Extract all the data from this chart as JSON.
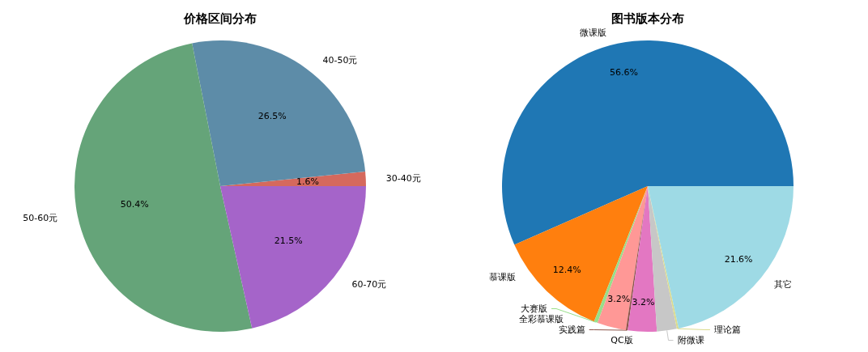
{
  "chart_data": [
    {
      "type": "pie",
      "title": "价格区间分布",
      "categories": [
        "30-40元",
        "40-50元",
        "50-60元",
        "60-70元"
      ],
      "values": [
        1.6,
        26.5,
        50.4,
        21.5
      ],
      "colors": [
        "#d5695d",
        "#5d8ca8",
        "#65a479",
        "#a564c9"
      ],
      "value_labels": [
        "1.6%",
        "26.5%",
        "50.4%",
        "21.5%"
      ]
    },
    {
      "type": "pie",
      "title": "图书版本分布",
      "categories": [
        "微课版",
        "慕课版",
        "大赛版",
        "全彩慕课版",
        "实践篇",
        "QC版",
        "附微课",
        "理论篇",
        "其它"
      ],
      "values": [
        56.6,
        12.4,
        0.4,
        3.2,
        0.2,
        3.2,
        2.2,
        0.2,
        21.6
      ],
      "colors": [
        "#1f77b4",
        "#ff7f0e",
        "#98df8a",
        "#ff9896",
        "#8c564b",
        "#e377c2",
        "#c7c7c7",
        "#dbdb8d",
        "#9edae5"
      ],
      "value_labels": [
        "56.6%",
        "12.4%",
        null,
        "3.2%",
        null,
        "3.2%",
        null,
        null,
        "21.6%"
      ]
    }
  ]
}
